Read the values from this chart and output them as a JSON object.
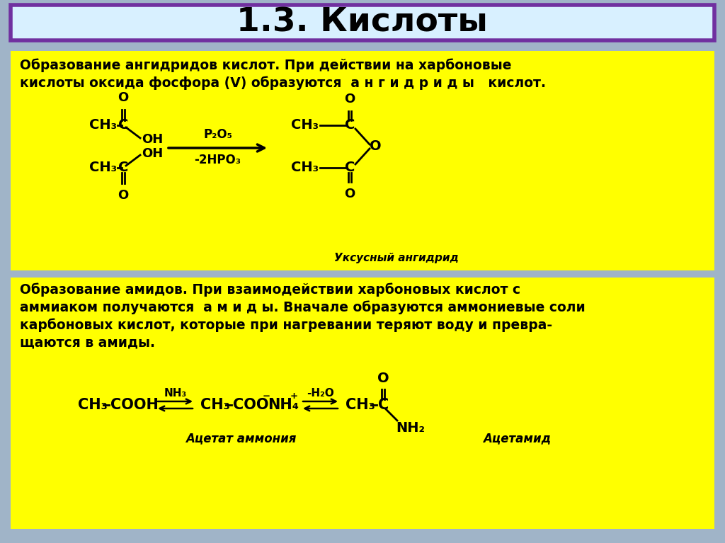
{
  "title": "1.3. Кислоты",
  "title_fontsize": 34,
  "title_color": "#000000",
  "title_box_facecolor": "#d8f0ff",
  "title_border_color": "#7030a0",
  "bg_color": "#a0b4c8",
  "panel_color": "#ffff00",
  "panel1_header_line1": "Образование ангидридов кислот. При действии на харбоновые",
  "panel1_header_line2": "кислоты оксида фосфора (V) образуются  а н г и д р и д ы   кислот.",
  "panel2_header_line1": "Образование амидов. При взаимодействии харбоновых кислот с",
  "panel2_header_line2": "аммиаком получаются  а м и д ы. Вначале образуются аммониевые соли",
  "panel2_header_line3": "карбоновых кислот, которые при нагревании теряют воду и превра-",
  "panel2_header_line4": "щаются в амиды.",
  "panel1_label": "Уксусный ангидрид",
  "panel2_label1": "Ацетат аммония",
  "panel2_label2": "Ацетамид"
}
